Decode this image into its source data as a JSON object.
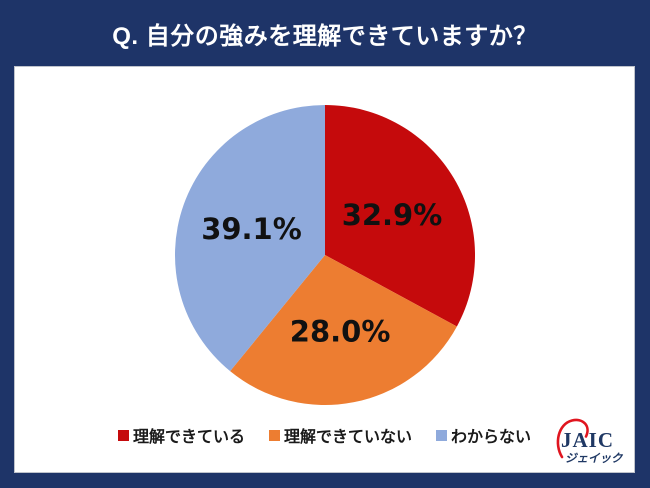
{
  "header": {
    "title": "Q. 自分の強みを理解できていますか？"
  },
  "chart_data": {
    "type": "pie",
    "title": "Q. 自分の強みを理解できていますか？",
    "direction": "clockwise",
    "start_angle_deg_from_top": 0,
    "legend_position": "bottom",
    "slices": [
      {
        "label": "理解できている",
        "value": 32.9,
        "display": "32.9%",
        "color": "#C50A0C"
      },
      {
        "label": "理解できていない",
        "value": 28.0,
        "display": "28.0%",
        "color": "#ED7D31"
      },
      {
        "label": "わからない",
        "value": 39.1,
        "display": "39.1%",
        "color": "#8FAADC"
      }
    ]
  },
  "logo": {
    "name": "JAIC",
    "katakana": "ジェイック"
  },
  "colors": {
    "background_navy": "#1E3468",
    "panel_background": "#FFFFFF",
    "title_text": "#FFFFFF",
    "pie_label_text": "#111111",
    "legend_text": "#1A1A1A",
    "logo_navy": "#1F3864",
    "logo_red": "#E0151F"
  }
}
